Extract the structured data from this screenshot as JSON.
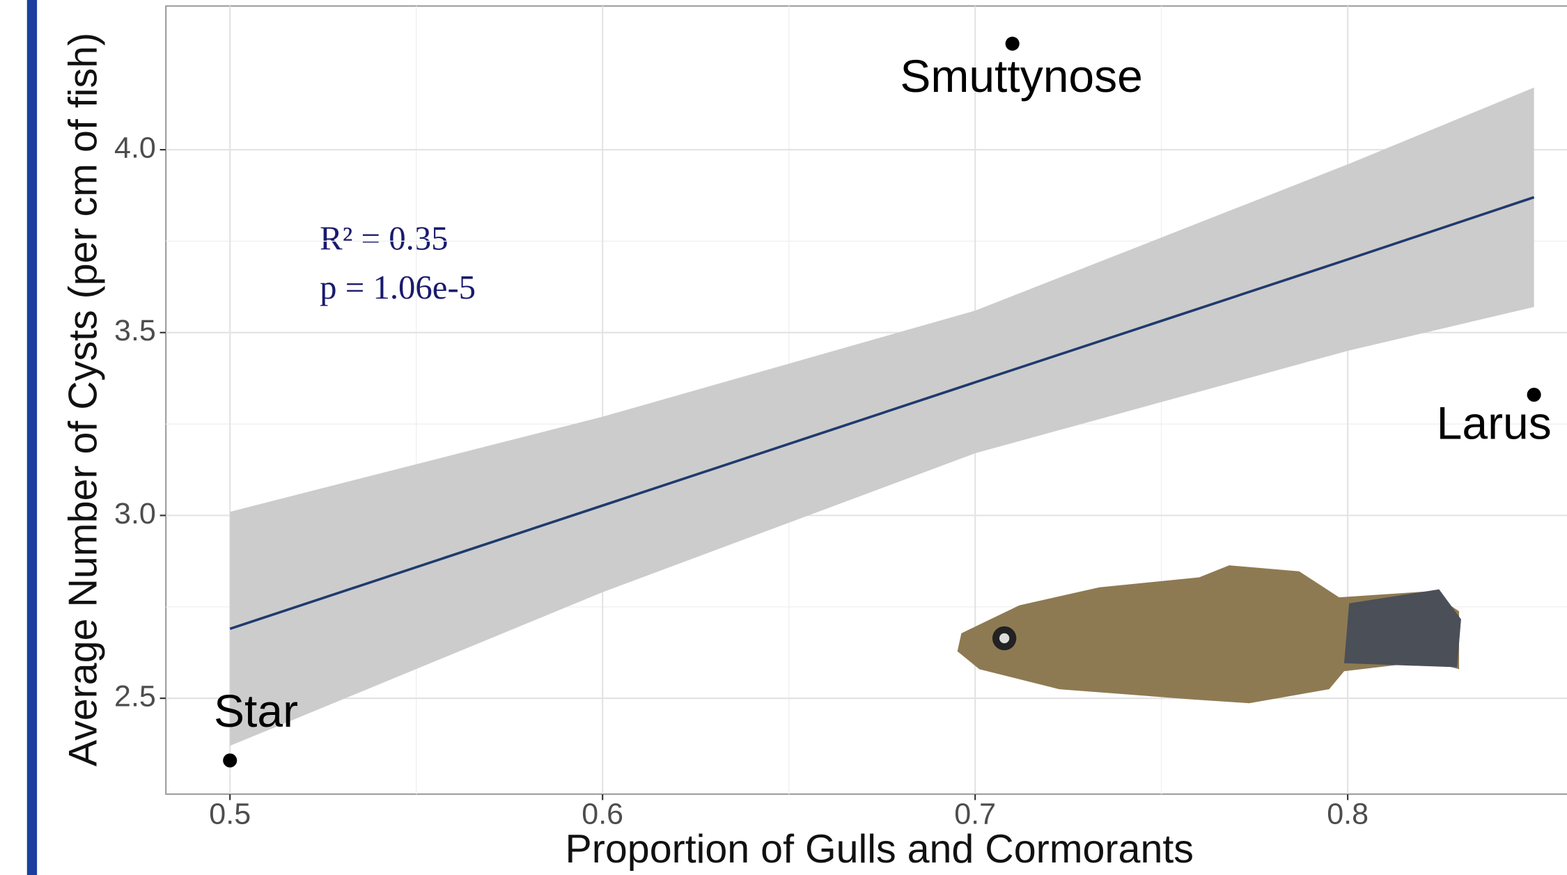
{
  "chart_data": {
    "type": "scatter",
    "x_label": "Proportion of Gulls and Cormorants",
    "y_label": "Average Number of Cysts (per cm of fish)",
    "xlim": [
      0.4828,
      0.861
    ],
    "ylim": [
      2.238,
      4.393
    ],
    "xticks": [
      0.5,
      0.6,
      0.7,
      0.8
    ],
    "yticks": [
      {
        "value": 2.5,
        "label": "2.5"
      },
      {
        "value": 3.0,
        "label": "3.0"
      },
      {
        "value": 3.5,
        "label": "3.5"
      },
      {
        "value": 4.0,
        "label": "4.0"
      }
    ],
    "grid": true,
    "points": {
      "x": [
        0.5,
        0.71,
        0.85
      ],
      "y": [
        2.33,
        4.29,
        3.33
      ],
      "labels": [
        "Star",
        "Smuttynose",
        "Larus"
      ],
      "color": "#000000"
    },
    "fit": {
      "x": [
        0.5,
        0.6,
        0.7,
        0.8,
        0.85
      ],
      "y": [
        2.69,
        3.027,
        3.364,
        3.7,
        3.87
      ],
      "lower": [
        2.37,
        2.79,
        3.17,
        3.45,
        3.57
      ],
      "upper": [
        3.01,
        3.27,
        3.56,
        3.96,
        4.17
      ],
      "color": "#1f3a6e",
      "band_color": "#cccccc"
    },
    "annotations": [
      "R² = 0.35",
      "p = 1.06e-5"
    ]
  }
}
